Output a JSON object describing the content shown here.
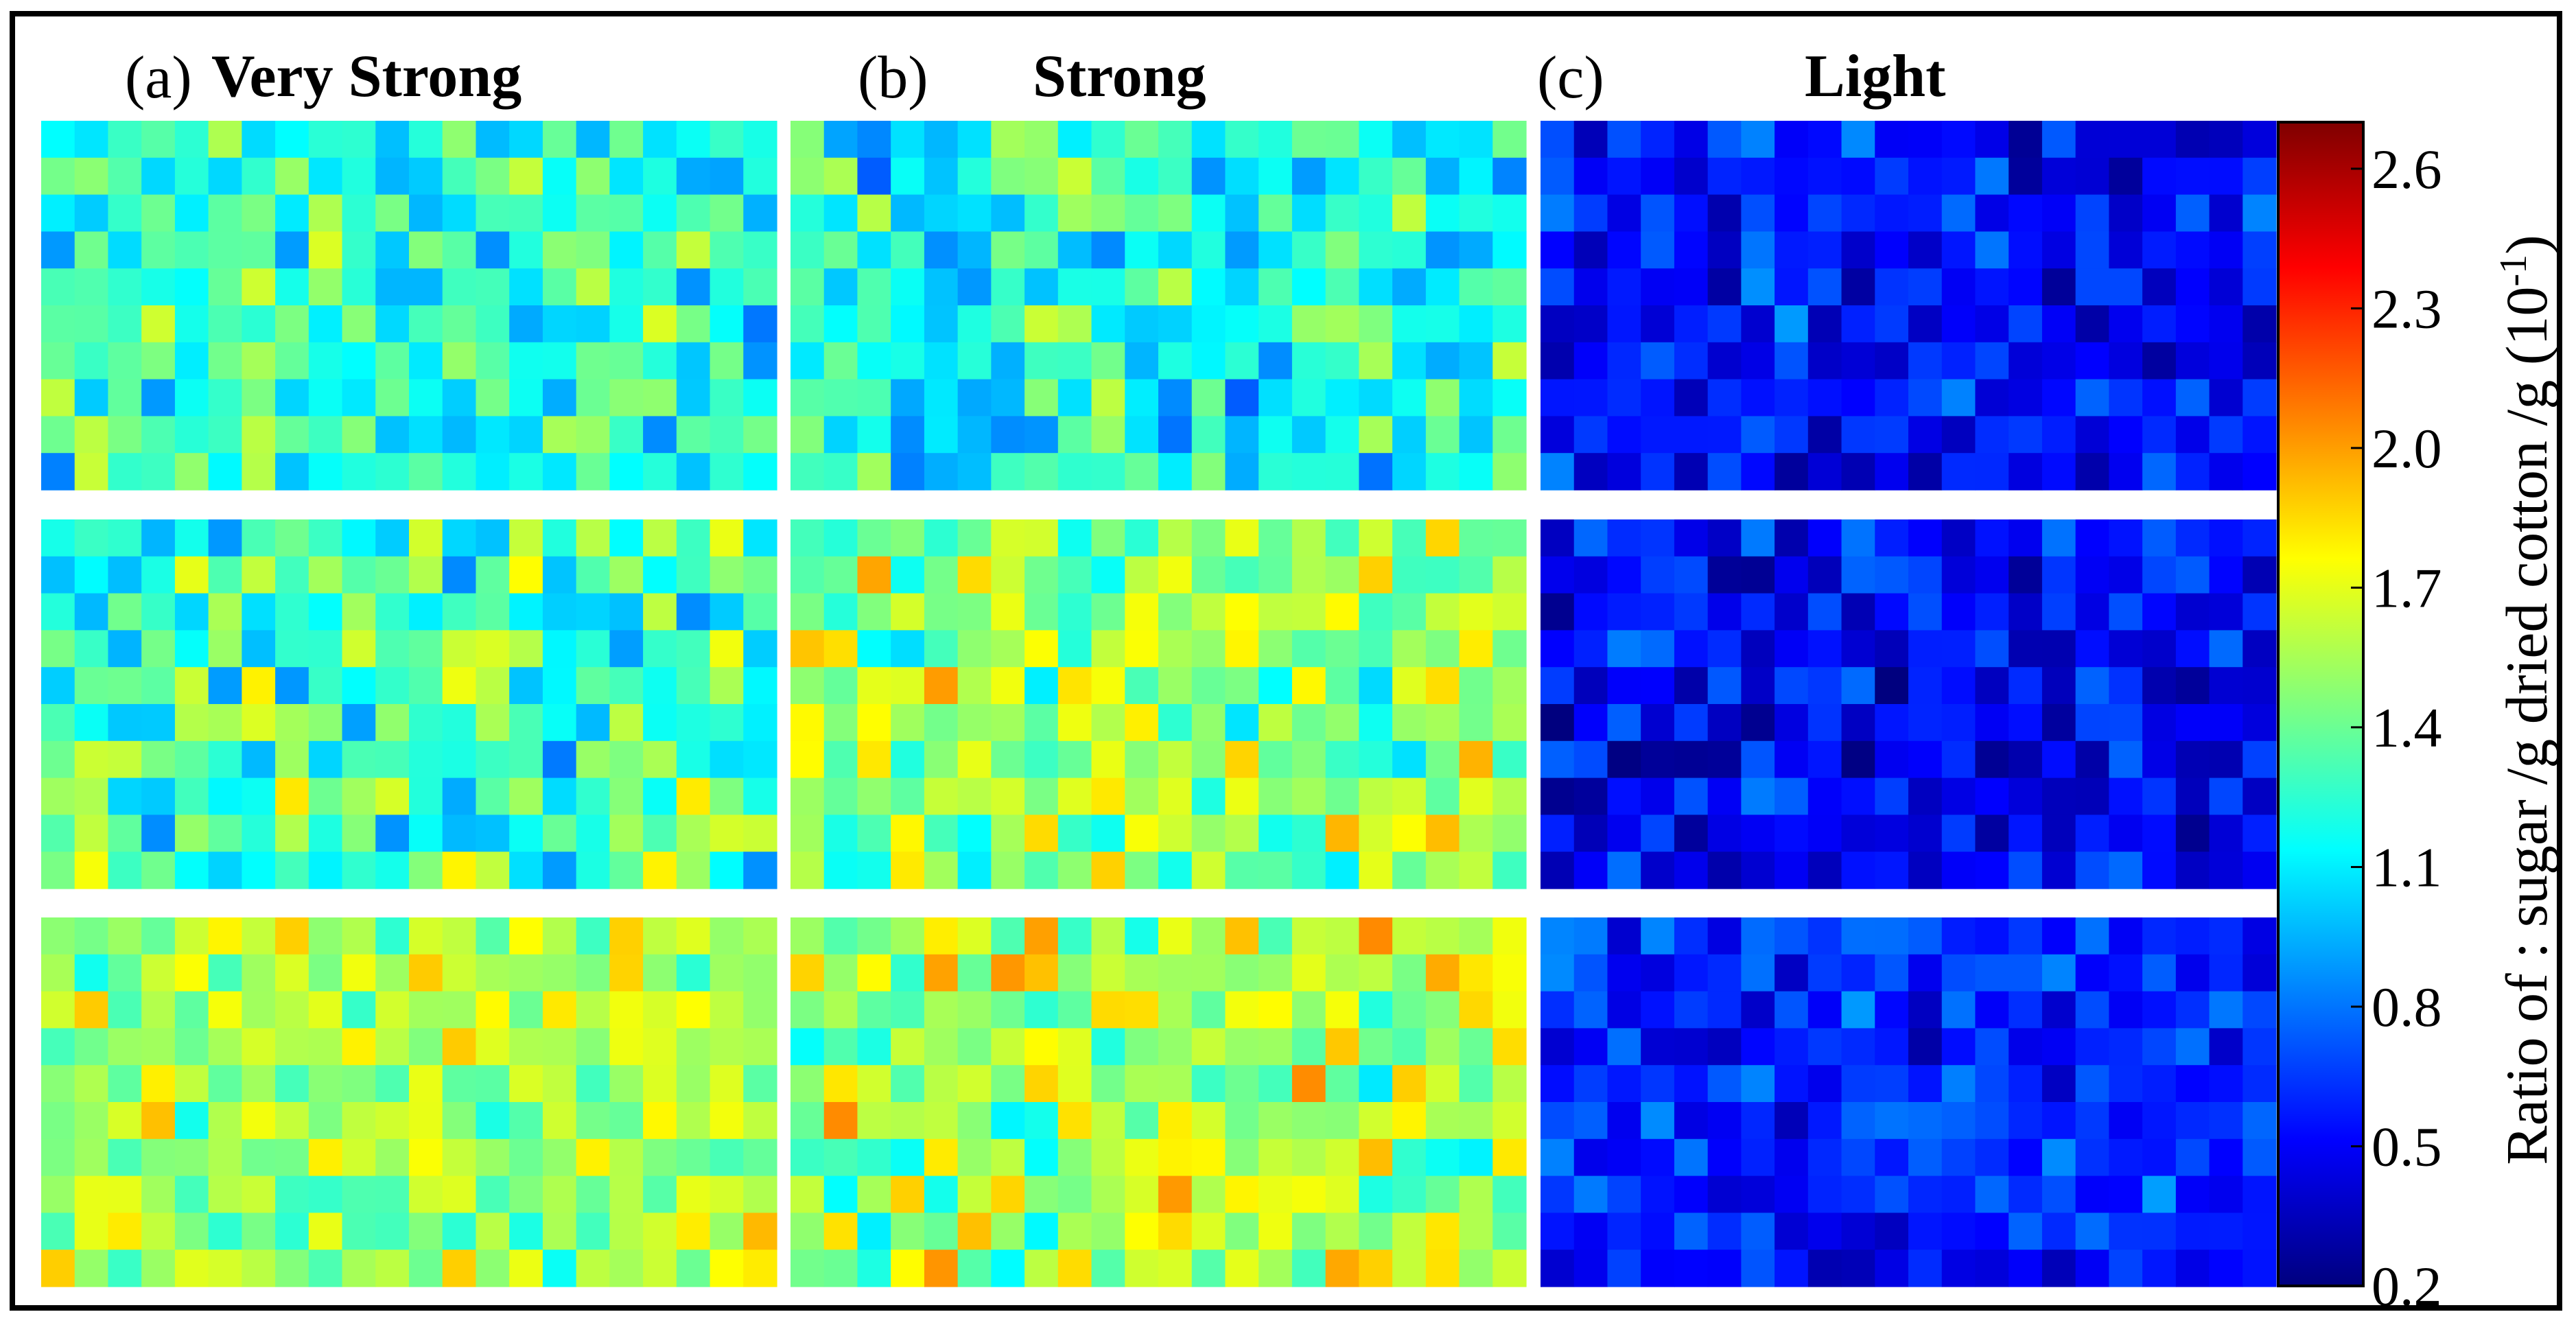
{
  "chart_data": {
    "type": "heatmap",
    "colormap": "jet",
    "panels": [
      {
        "letter": "(a)",
        "title": "Very Strong",
        "level": "very-strong",
        "rows_per_map": 10,
        "cols_per_map": 22,
        "map_means": [
          1.25,
          1.3,
          1.55
        ],
        "map_spread": [
          0.35,
          0.4,
          0.3
        ],
        "samples": 3
      },
      {
        "letter": "(b)",
        "title": "Strong",
        "level": "strong",
        "rows_per_map": 10,
        "cols_per_map": 22,
        "map_means": [
          1.2,
          1.5,
          1.55
        ],
        "map_spread": [
          0.35,
          0.4,
          0.4
        ],
        "samples": 3
      },
      {
        "letter": "(c)",
        "title": "Light",
        "level": "light",
        "rows_per_map": 10,
        "cols_per_map": 22,
        "map_means": [
          0.55,
          0.5,
          0.6
        ],
        "map_spread": [
          0.25,
          0.25,
          0.22
        ],
        "samples": 3
      }
    ],
    "colorbar": {
      "label": "Ratio of : sugar /g dried cotton /g (10",
      "label_exponent": "-1",
      "label_suffix": ")",
      "range": [
        0.2,
        2.7
      ],
      "ticks": [
        "2.6",
        "2.3",
        "2.0",
        "1.7",
        "1.4",
        "1.1",
        "0.8",
        "0.5",
        "0.2"
      ],
      "tick_values": [
        2.6,
        2.3,
        2.0,
        1.7,
        1.4,
        1.1,
        0.8,
        0.5,
        0.2
      ]
    }
  },
  "colors": {
    "frame": "#000000",
    "jet": [
      "#00007f",
      "#0000ff",
      "#007fff",
      "#00ffff",
      "#7fff7f",
      "#ffff00",
      "#ff7f00",
      "#ff0000",
      "#7f0000"
    ]
  }
}
